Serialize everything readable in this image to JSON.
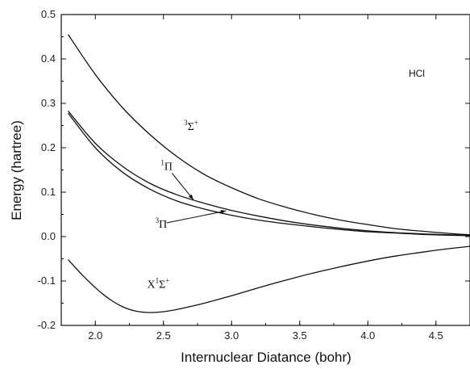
{
  "chart_data": {
    "type": "line",
    "title": "",
    "xlabel": "Internuclear Diatance (bohr)",
    "ylabel": "Energy (hartree)",
    "xlim": [
      1.75,
      4.75
    ],
    "ylim": [
      -0.2,
      0.5
    ],
    "xticks": [
      2.0,
      2.5,
      3.0,
      3.5,
      4.0,
      4.5
    ],
    "xtick_labels": [
      "2.0",
      "2.5",
      "3.0",
      "3.5",
      "4.0",
      "4.5"
    ],
    "yticks": [
      -0.2,
      -0.1,
      0.0,
      0.1,
      0.2,
      0.3,
      0.4,
      0.5
    ],
    "ytick_labels": [
      "-0.2",
      "-0.1",
      "0.0",
      "0.1",
      "0.2",
      "0.3",
      "0.4",
      "0.5"
    ],
    "grid": false,
    "legend": "none",
    "series": [
      {
        "x": [
          1.8,
          2.0,
          2.2,
          2.4,
          2.6,
          2.8,
          3.0,
          3.2,
          3.4,
          3.6,
          3.8,
          4.0,
          4.2,
          4.4,
          4.6,
          4.75
        ],
        "y": [
          0.455,
          0.365,
          0.29,
          0.23,
          0.18,
          0.14,
          0.11,
          0.085,
          0.066,
          0.05,
          0.037,
          0.027,
          0.018,
          0.012,
          0.007,
          0.004
        ]
      },
      {
        "x": [
          1.8,
          2.0,
          2.2,
          2.4,
          2.6,
          2.8,
          3.0,
          3.2,
          3.4,
          3.6,
          3.8,
          4.0,
          4.2,
          4.4,
          4.6,
          4.75
        ],
        "y": [
          0.283,
          0.21,
          0.158,
          0.12,
          0.094,
          0.075,
          0.059,
          0.046,
          0.035,
          0.026,
          0.019,
          0.013,
          0.009,
          0.006,
          0.004,
          0.003
        ]
      },
      {
        "x": [
          1.8,
          2.0,
          2.2,
          2.4,
          2.6,
          2.8,
          3.0,
          3.2,
          3.4,
          3.6,
          3.8,
          4.0,
          4.2,
          4.4,
          4.6,
          4.75
        ],
        "y": [
          0.278,
          0.2,
          0.145,
          0.107,
          0.08,
          0.062,
          0.048,
          0.037,
          0.029,
          0.022,
          0.016,
          0.011,
          0.008,
          0.005,
          0.003,
          0.002
        ]
      },
      {
        "x": [
          1.8,
          1.9,
          2.0,
          2.1,
          2.2,
          2.3,
          2.4,
          2.5,
          2.6,
          2.8,
          3.0,
          3.2,
          3.4,
          3.6,
          3.8,
          4.0,
          4.2,
          4.4,
          4.6,
          4.75
        ],
        "y": [
          -0.052,
          -0.085,
          -0.115,
          -0.14,
          -0.158,
          -0.168,
          -0.171,
          -0.169,
          -0.164,
          -0.15,
          -0.133,
          -0.115,
          -0.098,
          -0.082,
          -0.068,
          -0.055,
          -0.044,
          -0.035,
          -0.027,
          -0.022
        ]
      }
    ],
    "annotations": [
      {
        "text": "HCl",
        "x": 4.3,
        "y": 0.36
      },
      {
        "text": "3Σ+",
        "x": 2.65,
        "y": 0.24,
        "sup": "3",
        "base": "Σ",
        "sup2": "+"
      },
      {
        "text": "1Π",
        "x": 2.48,
        "y": 0.15,
        "sup": "1",
        "base": "Π",
        "arrow_to": {
          "x": 2.72,
          "y": 0.083
        }
      },
      {
        "text": "3Π",
        "x": 2.44,
        "y": 0.02,
        "sup": "3",
        "base": "Π",
        "arrow_to": {
          "x": 2.96,
          "y": 0.058
        }
      },
      {
        "text": "X1Σ+",
        "x": 2.38,
        "y": -0.115,
        "pre": "X",
        "sup": "1",
        "base": "Σ",
        "sup2": "+"
      }
    ]
  }
}
